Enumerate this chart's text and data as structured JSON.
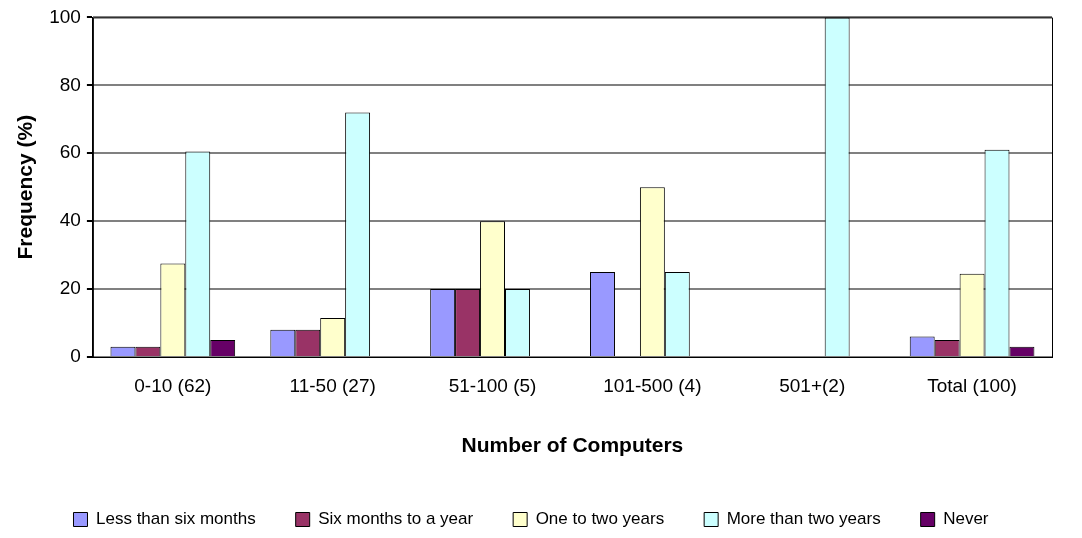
{
  "chart_data": {
    "type": "bar",
    "xlabel": "Number of Computers",
    "ylabel": "Frequency (%)",
    "categories": [
      "0-10 (62)",
      "11-50 (27)",
      "51-100 (5)",
      "101-500 (4)",
      "501+(2)",
      "Total (100)"
    ],
    "series": [
      {
        "name": "Less than six months",
        "color": "#9999ff",
        "values": [
          3,
          8,
          20,
          25,
          null,
          6
        ]
      },
      {
        "name": "Six months to a year",
        "color": "#993366",
        "values": [
          3,
          8,
          20,
          null,
          null,
          5
        ]
      },
      {
        "name": "One to two years",
        "color": "#ffffcc",
        "values": [
          27.5,
          11.5,
          40,
          50,
          null,
          24.5
        ]
      },
      {
        "name": "More than two years",
        "color": "#ccffff",
        "values": [
          60.5,
          72,
          20,
          25,
          100,
          61
        ]
      },
      {
        "name": "Never",
        "color": "#660066",
        "values": [
          5,
          null,
          null,
          null,
          null,
          3
        ]
      }
    ],
    "ylim": [
      0,
      100
    ],
    "yticks": [
      0,
      20,
      40,
      60,
      80,
      100
    ],
    "grid": "y",
    "legend": "bottom"
  }
}
